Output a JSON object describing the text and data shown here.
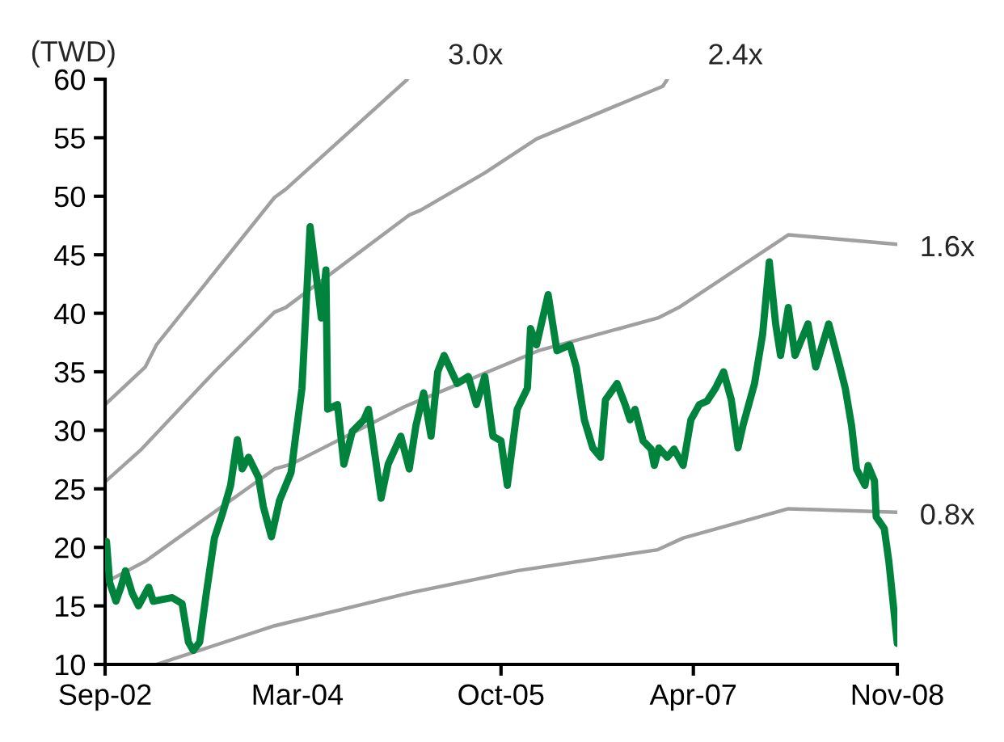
{
  "chart_data": {
    "type": "line",
    "ylabel": "(TWD)",
    "xlim": [
      "2002-09-01",
      "2008-11-01"
    ],
    "xticks": [
      {
        "value": "2002-09-01",
        "label": "Sep-02"
      },
      {
        "value": "2004-03-01",
        "label": "Mar-04"
      },
      {
        "value": "2005-10-01",
        "label": "Oct-05"
      },
      {
        "value": "2007-04-01",
        "label": "Apr-07"
      },
      {
        "value": "2008-11-01",
        "label": "Nov-08"
      }
    ],
    "ylim": [
      10,
      60
    ],
    "yticks": [
      10,
      15,
      20,
      25,
      30,
      35,
      40,
      45,
      50,
      55,
      60
    ],
    "grid": false,
    "legend": false,
    "marker": "none",
    "line_style": "solid",
    "series": [
      {
        "name": "3.0x",
        "color": "#a0a0a0",
        "x": [
          "2002-09-01",
          "2002-12-24",
          "2003-01-25",
          "2003-12-27",
          "2004-01-28",
          "2005-01-08"
        ],
        "values": [
          32.2,
          35.4,
          37.3,
          49.9,
          50.6,
          60
        ]
      },
      {
        "name": "2.4x",
        "color": "#a0a0a0",
        "x": [
          "2002-09-01",
          "2002-12-14",
          "2003-07-09",
          "2003-12-27",
          "2004-01-28",
          "2005-01-13",
          "2005-02-14",
          "2005-08-16",
          "2006-01-10",
          "2007-01-04",
          "2007-01-17"
        ],
        "values": [
          25.6,
          28.4,
          35.0,
          40.1,
          40.5,
          48.4,
          48.8,
          52.0,
          54.9,
          59.4,
          60
        ]
      },
      {
        "name": "1.6x",
        "color": "#a0a0a0",
        "x": [
          "2002-09-01",
          "2002-12-24",
          "2003-12-27",
          "2004-02-12",
          "2004-12-29",
          "2006-01-15",
          "2006-12-21",
          "2007-02-19",
          "2007-12-27",
          "2008-11-01"
        ],
        "values": [
          17.0,
          18.8,
          26.7,
          27.1,
          32.0,
          36.8,
          39.6,
          40.5,
          46.7,
          45.9
        ]
      },
      {
        "name": "0.8x",
        "color": "#a0a0a0",
        "x": [
          "2003-01-25",
          "2003-12-27",
          "2005-01-13",
          "2005-11-16",
          "2006-12-21",
          "2007-03-03",
          "2007-12-27",
          "2008-11-01"
        ],
        "values": [
          10.0,
          13.3,
          16.1,
          18.0,
          19.8,
          20.8,
          23.3,
          23.0
        ]
      },
      {
        "color": "#00843d",
        "x": [
          "2002-09-05",
          "2002-09-14",
          "2002-10-02",
          "2002-10-16",
          "2002-10-29",
          "2002-11-17",
          "2002-12-05",
          "2003-01-03",
          "2003-01-16",
          "2003-03-11",
          "2003-04-08",
          "2003-04-26",
          "2003-05-10",
          "2003-05-28",
          "2003-06-16",
          "2003-07-09",
          "2003-08-02",
          "2003-08-24",
          "2003-09-12",
          "2003-09-26",
          "2003-10-14",
          "2003-11-11",
          "2003-11-25",
          "2003-12-18",
          "2004-01-10",
          "2004-02-12",
          "2004-02-25",
          "2004-03-14",
          "2004-04-06",
          "2004-04-29",
          "2004-05-08",
          "2004-05-21",
          "2004-05-26",
          "2004-06-23",
          "2004-07-11",
          "2004-08-04",
          "2004-09-06",
          "2004-09-19",
          "2004-10-25",
          "2004-11-14",
          "2004-12-20",
          "2005-01-13",
          "2005-02-01",
          "2005-02-23",
          "2005-03-16",
          "2005-04-04",
          "2005-04-22",
          "2005-05-29",
          "2005-06-30",
          "2005-07-23",
          "2005-08-16",
          "2005-09-08",
          "2005-10-01",
          "2005-10-19",
          "2005-11-16",
          "2005-12-15",
          "2005-12-24",
          "2006-01-10",
          "2006-02-12",
          "2006-03-09",
          "2006-04-15",
          "2006-05-03",
          "2006-05-26",
          "2006-06-19",
          "2006-07-11",
          "2006-07-25",
          "2006-08-27",
          "2006-09-19",
          "2006-10-03",
          "2006-10-17",
          "2006-11-09",
          "2006-12-02",
          "2006-12-11",
          "2006-12-24",
          "2007-01-17",
          "2007-02-05",
          "2007-03-03",
          "2007-03-25",
          "2007-04-18",
          "2007-05-10",
          "2007-06-03",
          "2007-06-26",
          "2007-07-18",
          "2007-08-06",
          "2007-08-20",
          "2007-09-22",
          "2007-10-15",
          "2007-11-03",
          "2007-11-21",
          "2007-12-05",
          "2007-12-27",
          "2008-01-15",
          "2008-02-21",
          "2008-03-14",
          "2008-04-20",
          "2008-05-22",
          "2008-06-06",
          "2008-06-24",
          "2008-07-08",
          "2008-08-01",
          "2008-08-10",
          "2008-08-28",
          "2008-09-02",
          "2008-09-25",
          "2008-10-08",
          "2008-11-01"
        ],
        "values": [
          20.5,
          17.0,
          15.4,
          16.6,
          18.0,
          16.1,
          15.0,
          16.6,
          15.4,
          15.7,
          15.2,
          11.9,
          11.2,
          11.9,
          16.1,
          20.8,
          23.0,
          25.3,
          29.2,
          26.7,
          27.7,
          26.0,
          23.5,
          20.9,
          24.0,
          26.4,
          29.5,
          33.6,
          47.4,
          41.9,
          39.6,
          43.7,
          31.8,
          32.2,
          27.1,
          29.9,
          30.9,
          31.8,
          24.2,
          27.1,
          29.5,
          26.7,
          30.4,
          33.2,
          29.5,
          35.0,
          36.4,
          34.0,
          34.6,
          32.2,
          34.6,
          29.5,
          29.1,
          25.3,
          31.8,
          33.6,
          38.7,
          37.3,
          41.6,
          36.8,
          37.3,
          35.4,
          30.9,
          28.5,
          27.7,
          32.6,
          34.0,
          32.2,
          30.9,
          31.8,
          29.1,
          28.4,
          27.0,
          28.5,
          27.7,
          28.4,
          27.0,
          30.9,
          32.2,
          32.5,
          33.6,
          35.0,
          32.6,
          28.5,
          30.4,
          34.0,
          38.2,
          44.4,
          39.1,
          36.4,
          40.5,
          36.4,
          39.1,
          35.4,
          39.1,
          35.4,
          33.6,
          30.4,
          26.7,
          25.3,
          27.0,
          25.7,
          22.6,
          21.6,
          18.8,
          11.8
        ]
      }
    ]
  }
}
